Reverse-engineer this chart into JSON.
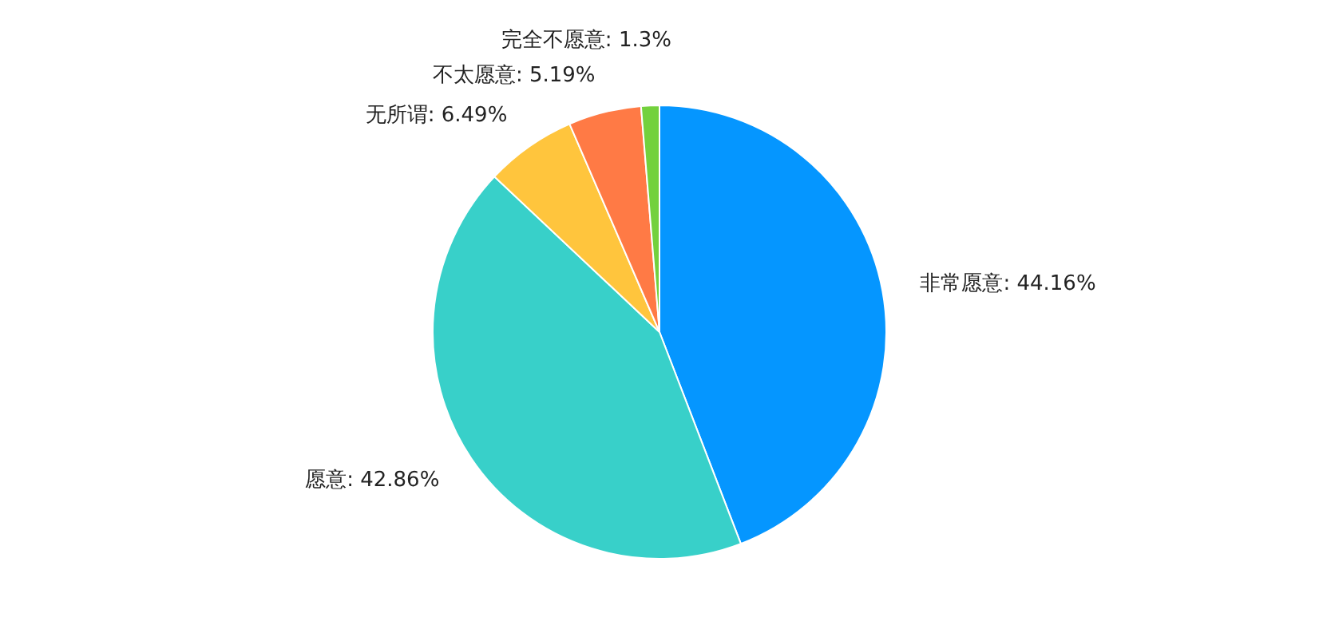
{
  "chart_data": {
    "type": "pie",
    "categories": [
      "非常愿意",
      "愿意",
      "无所谓",
      "不太愿意",
      "完全不愿意"
    ],
    "values": [
      44.16,
      42.86,
      6.49,
      5.19,
      1.3
    ],
    "value_labels": [
      "44.16%",
      "42.86%",
      "6.49%",
      "5.19%",
      "1.3%"
    ],
    "colors": [
      "#0596ff",
      "#38d0c9",
      "#ffc53d",
      "#ff7a45",
      "#73d13d"
    ]
  }
}
